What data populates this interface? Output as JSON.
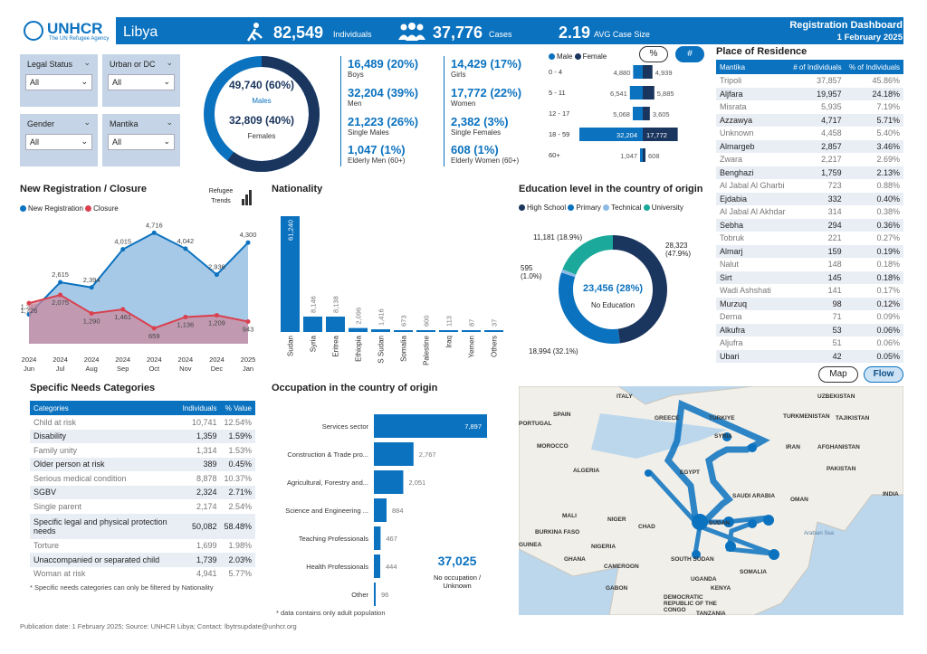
{
  "header": {
    "org": "UNHCR",
    "org_sub": "The UN Refugee Agency",
    "country": "Libya",
    "individuals_value": "82,549",
    "individuals_label": "Individuals",
    "cases_value": "37,776",
    "cases_label": "Cases",
    "avg_value": "2.19",
    "avg_label": "AVG Case Size",
    "dash_title": "Registration Dashboard",
    "dash_date": "1 February 2025"
  },
  "filters": [
    {
      "label": "Legal Status",
      "value": "All"
    },
    {
      "label": "Urban or DC",
      "value": "All"
    },
    {
      "label": "Gender",
      "value": "All"
    },
    {
      "label": "Mantika",
      "value": "All"
    }
  ],
  "donut": {
    "males_value": "49,740 (60%)",
    "males_label": "Males",
    "females_value": "32,809 (40%)",
    "females_label": "Females",
    "male_share": 0.6
  },
  "stats": [
    {
      "v": "16,489 (20%)",
      "l": "Boys"
    },
    {
      "v": "14,429 (17%)",
      "l": "Girls"
    },
    {
      "v": "32,204 (39%)",
      "l": "Men"
    },
    {
      "v": "17,772 (22%)",
      "l": "Women"
    },
    {
      "v": "21,223 (26%)",
      "l": "Single Males"
    },
    {
      "v": "2,382 (3%)",
      "l": "Single Females"
    },
    {
      "v": "1,047 (1%)",
      "l": "Elderly Men (60+)"
    },
    {
      "v": "608 (1%)",
      "l": "Elderly Women (60+)"
    }
  ],
  "pyramid": {
    "legend_male": "Male",
    "legend_female": "Female",
    "btn_pct": "%",
    "btn_num": "#",
    "rows": [
      {
        "age": "0 - 4",
        "m": 4880,
        "f": 4939
      },
      {
        "age": "5 - 11",
        "m": 6541,
        "f": 5885
      },
      {
        "age": "12 - 17",
        "m": 5068,
        "f": 3605
      },
      {
        "age": "18 - 59",
        "m": 32204,
        "f": 17772
      },
      {
        "age": "60+",
        "m": 1047,
        "f": 608
      }
    ]
  },
  "residence": {
    "title": "Place of Residence",
    "cols": [
      "Mantika",
      "# of Individuals",
      "% of Individuals"
    ],
    "rows": [
      [
        "Tripoli",
        "37,857",
        "45.86%"
      ],
      [
        "Aljfara",
        "19,957",
        "24.18%"
      ],
      [
        "Misrata",
        "5,935",
        "7.19%"
      ],
      [
        "Azzawya",
        "4,717",
        "5.71%"
      ],
      [
        "Unknown",
        "4,458",
        "5.40%"
      ],
      [
        "Almargeb",
        "2,857",
        "3.46%"
      ],
      [
        "Zwara",
        "2,217",
        "2.69%"
      ],
      [
        "Benghazi",
        "1,759",
        "2.13%"
      ],
      [
        "Al Jabal Al Gharbi",
        "723",
        "0.88%"
      ],
      [
        "Ejdabia",
        "332",
        "0.40%"
      ],
      [
        "Al Jabal Al Akhdar",
        "314",
        "0.38%"
      ],
      [
        "Sebha",
        "294",
        "0.36%"
      ],
      [
        "Tobruk",
        "221",
        "0.27%"
      ],
      [
        "Almarj",
        "159",
        "0.19%"
      ],
      [
        "Nalut",
        "148",
        "0.18%"
      ],
      [
        "Sirt",
        "145",
        "0.18%"
      ],
      [
        "Wadi Ashshati",
        "141",
        "0.17%"
      ],
      [
        "Murzuq",
        "98",
        "0.12%"
      ],
      [
        "Derna",
        "71",
        "0.09%"
      ],
      [
        "Alkufra",
        "53",
        "0.06%"
      ],
      [
        "Aljufra",
        "51",
        "0.06%"
      ],
      [
        "Ubari",
        "42",
        "0.05%"
      ]
    ]
  },
  "reg": {
    "title": "New Registration / Closure",
    "legend_new": "New Registration",
    "legend_closure": "Closure",
    "trends_label": "Refugee Trends"
  },
  "nationality": {
    "title": "Nationality"
  },
  "education": {
    "title": "Education level in the country of origin",
    "legend": [
      "High School",
      "Primary",
      "Technical",
      "University"
    ],
    "center_value": "23,456 (28%)",
    "center_label": "No Education",
    "l1": "28,323 (47.9%)",
    "l2": "18,994 (32.1%)",
    "l3": "595 (1.0%)",
    "l4": "11,181 (18.9%)"
  },
  "needs": {
    "title": "Specific Needs Categories",
    "cols": [
      "Categories",
      "Individuals",
      "% Value"
    ],
    "rows": [
      [
        "Child at risk",
        "10,741",
        "12.54%"
      ],
      [
        "Disability",
        "1,359",
        "1.59%"
      ],
      [
        "Family unity",
        "1,314",
        "1.53%"
      ],
      [
        "Older person at risk",
        "389",
        "0.45%"
      ],
      [
        "Serious medical condition",
        "8,878",
        "10.37%"
      ],
      [
        "SGBV",
        "2,324",
        "2.71%"
      ],
      [
        "Single parent",
        "2,174",
        "2.54%"
      ],
      [
        "Specific legal and physical protection needs",
        "50,082",
        "58.48%"
      ],
      [
        "Torture",
        "1,699",
        "1.98%"
      ],
      [
        "Unaccompanied or separated child",
        "1,739",
        "2.03%"
      ],
      [
        "Woman at risk",
        "4,941",
        "5.77%"
      ]
    ],
    "note": "* Specific needs categories can only be filtered by Nationality"
  },
  "occupation": {
    "title": "Occupation in the country of origin",
    "no_occ_value": "37,025",
    "no_occ_label": "No occupation / Unknown",
    "note": "* data contains only adult population"
  },
  "map": {
    "btn_map": "Map",
    "btn_flow": "Flow",
    "labels": [
      "ITALY",
      "UZBEKISTAN",
      "SPAIN",
      "GREECE",
      "TÜRKIYE",
      "TURKMENISTAN",
      "TAJIKISTAN",
      "PORTUGAL",
      "SYRIA",
      "MOROCCO",
      "IRAN",
      "AFGHANISTAN",
      "ALGERIA",
      "EGYPT",
      "PAKISTAN",
      "SAUDI ARABIA",
      "OMAN",
      "INDIA",
      "MALI",
      "NIGER",
      "CHAD",
      "SUDAN",
      "BURKINA FASO",
      "NIGERIA",
      "GUINEA",
      "GHANA",
      "SOUTH SUDAN",
      "CAMEROON",
      "SOMALIA",
      "GABON",
      "UGANDA",
      "KENYA",
      "DEMOCRATIC REPUBLIC OF THE CONGO",
      "TANZANIA",
      "Arabian Sea"
    ]
  },
  "footer": "Publication date: 1 February 2025; Source: UNHCR Libya; Contact: lbytrsupdate@unhcr.org",
  "chart_data": [
    {
      "type": "area",
      "title": "New Registration / Closure",
      "categories": [
        "2024 Jun",
        "2024 Jul",
        "2024 Aug",
        "2024 Sep",
        "2024 Oct",
        "2024 Nov",
        "2024 Dec",
        "2025 Jan"
      ],
      "series": [
        {
          "name": "New Registration",
          "values": [
            1245,
            2615,
            2394,
            4015,
            4716,
            4042,
            2936,
            4300
          ]
        },
        {
          "name": "Closure",
          "values": [
            1726,
            2075,
            1290,
            1461,
            659,
            1136,
            1209,
            943
          ]
        }
      ],
      "colors": [
        "#0b72bf",
        "#d9414e"
      ]
    },
    {
      "type": "bar",
      "title": "Nationality",
      "categories": [
        "Sudan",
        "Syria",
        "Eritrea",
        "Ethiopia",
        "S Sudan",
        "Somalia",
        "Palestine",
        "Iraq",
        "Yemen",
        "Others"
      ],
      "values": [
        61240,
        8146,
        8138,
        2096,
        1416,
        673,
        600,
        113,
        87,
        37
      ]
    },
    {
      "type": "pie",
      "title": "Education level in the country of origin",
      "categories": [
        "High School",
        "Primary",
        "Technical",
        "University"
      ],
      "values": [
        28323,
        18994,
        595,
        11181
      ],
      "colors": [
        "#1a355e",
        "#0b72bf",
        "#8ebbe6",
        "#1aa99a"
      ]
    },
    {
      "type": "bar",
      "title": "Occupation in the country of origin",
      "categories": [
        "Services sector",
        "Construction & Trade pro...",
        "Agricultural, Forestry and...",
        "Science and Engineering ...",
        "Teaching Professionals",
        "Health Professionals",
        "Other"
      ],
      "values": [
        7897,
        2767,
        2051,
        884,
        467,
        444,
        96
      ]
    }
  ]
}
